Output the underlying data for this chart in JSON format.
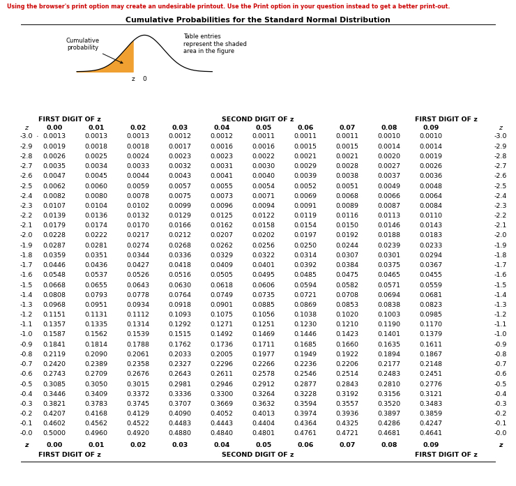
{
  "title": "Cumulative Probabilities for the Standard Normal Distribution",
  "warning": "Using the browser's print option may create an undesirable printout. Use the Print option in your question instead to get a better print-out.",
  "col_headers": [
    "0.00",
    "0.01",
    "0.02",
    "0.03",
    "0.04",
    "0.05",
    "0.06",
    "0.07",
    "0.08",
    "0.09"
  ],
  "z_values": [
    "-3.0",
    "-2.9",
    "-2.8",
    "-2.7",
    "-2.6",
    "-2.5",
    "-2.4",
    "-2.3",
    "-2.2",
    "-2.1",
    "-2.0",
    "-1.9",
    "-1.8",
    "-1.7",
    "-1.6",
    "-1.5",
    "-1.4",
    "-1.3",
    "-1.2",
    "-1.1",
    "-1.0",
    "-0.9",
    "-0.8",
    "-0.7",
    "-0.6",
    "-0.5",
    "-0.4",
    "-0.3",
    "-0.2",
    "-0.1",
    "-0.0"
  ],
  "table_data": [
    [
      "0.0013",
      "0.0013",
      "0.0013",
      "0.0012",
      "0.0012",
      "0.0011",
      "0.0011",
      "0.0011",
      "0.0010",
      "0.0010"
    ],
    [
      "0.0019",
      "0.0018",
      "0.0018",
      "0.0017",
      "0.0016",
      "0.0016",
      "0.0015",
      "0.0015",
      "0.0014",
      "0.0014"
    ],
    [
      "0.0026",
      "0.0025",
      "0.0024",
      "0.0023",
      "0.0023",
      "0.0022",
      "0.0021",
      "0.0021",
      "0.0020",
      "0.0019"
    ],
    [
      "0.0035",
      "0.0034",
      "0.0033",
      "0.0032",
      "0.0031",
      "0.0030",
      "0.0029",
      "0.0028",
      "0.0027",
      "0.0026"
    ],
    [
      "0.0047",
      "0.0045",
      "0.0044",
      "0.0043",
      "0.0041",
      "0.0040",
      "0.0039",
      "0.0038",
      "0.0037",
      "0.0036"
    ],
    [
      "0.0062",
      "0.0060",
      "0.0059",
      "0.0057",
      "0.0055",
      "0.0054",
      "0.0052",
      "0.0051",
      "0.0049",
      "0.0048"
    ],
    [
      "0.0082",
      "0.0080",
      "0.0078",
      "0.0075",
      "0.0073",
      "0.0071",
      "0.0069",
      "0.0068",
      "0.0066",
      "0.0064"
    ],
    [
      "0.0107",
      "0.0104",
      "0.0102",
      "0.0099",
      "0.0096",
      "0.0094",
      "0.0091",
      "0.0089",
      "0.0087",
      "0.0084"
    ],
    [
      "0.0139",
      "0.0136",
      "0.0132",
      "0.0129",
      "0.0125",
      "0.0122",
      "0.0119",
      "0.0116",
      "0.0113",
      "0.0110"
    ],
    [
      "0.0179",
      "0.0174",
      "0.0170",
      "0.0166",
      "0.0162",
      "0.0158",
      "0.0154",
      "0.0150",
      "0.0146",
      "0.0143"
    ],
    [
      "0.0228",
      "0.0222",
      "0.0217",
      "0.0212",
      "0.0207",
      "0.0202",
      "0.0197",
      "0.0192",
      "0.0188",
      "0.0183"
    ],
    [
      "0.0287",
      "0.0281",
      "0.0274",
      "0.0268",
      "0.0262",
      "0.0256",
      "0.0250",
      "0.0244",
      "0.0239",
      "0.0233"
    ],
    [
      "0.0359",
      "0.0351",
      "0.0344",
      "0.0336",
      "0.0329",
      "0.0322",
      "0.0314",
      "0.0307",
      "0.0301",
      "0.0294"
    ],
    [
      "0.0446",
      "0.0436",
      "0.0427",
      "0.0418",
      "0.0409",
      "0.0401",
      "0.0392",
      "0.0384",
      "0.0375",
      "0.0367"
    ],
    [
      "0.0548",
      "0.0537",
      "0.0526",
      "0.0516",
      "0.0505",
      "0.0495",
      "0.0485",
      "0.0475",
      "0.0465",
      "0.0455"
    ],
    [
      "0.0668",
      "0.0655",
      "0.0643",
      "0.0630",
      "0.0618",
      "0.0606",
      "0.0594",
      "0.0582",
      "0.0571",
      "0.0559"
    ],
    [
      "0.0808",
      "0.0793",
      "0.0778",
      "0.0764",
      "0.0749",
      "0.0735",
      "0.0721",
      "0.0708",
      "0.0694",
      "0.0681"
    ],
    [
      "0.0968",
      "0.0951",
      "0.0934",
      "0.0918",
      "0.0901",
      "0.0885",
      "0.0869",
      "0.0853",
      "0.0838",
      "0.0823"
    ],
    [
      "0.1151",
      "0.1131",
      "0.1112",
      "0.1093",
      "0.1075",
      "0.1056",
      "0.1038",
      "0.1020",
      "0.1003",
      "0.0985"
    ],
    [
      "0.1357",
      "0.1335",
      "0.1314",
      "0.1292",
      "0.1271",
      "0.1251",
      "0.1230",
      "0.1210",
      "0.1190",
      "0.1170"
    ],
    [
      "0.1587",
      "0.1562",
      "0.1539",
      "0.1515",
      "0.1492",
      "0.1469",
      "0.1446",
      "0.1423",
      "0.1401",
      "0.1379"
    ],
    [
      "0.1841",
      "0.1814",
      "0.1788",
      "0.1762",
      "0.1736",
      "0.1711",
      "0.1685",
      "0.1660",
      "0.1635",
      "0.1611"
    ],
    [
      "0.2119",
      "0.2090",
      "0.2061",
      "0.2033",
      "0.2005",
      "0.1977",
      "0.1949",
      "0.1922",
      "0.1894",
      "0.1867"
    ],
    [
      "0.2420",
      "0.2389",
      "0.2358",
      "0.2327",
      "0.2296",
      "0.2266",
      "0.2236",
      "0.2206",
      "0.2177",
      "0.2148"
    ],
    [
      "0.2743",
      "0.2709",
      "0.2676",
      "0.2643",
      "0.2611",
      "0.2578",
      "0.2546",
      "0.2514",
      "0.2483",
      "0.2451"
    ],
    [
      "0.3085",
      "0.3050",
      "0.3015",
      "0.2981",
      "0.2946",
      "0.2912",
      "0.2877",
      "0.2843",
      "0.2810",
      "0.2776"
    ],
    [
      "0.3446",
      "0.3409",
      "0.3372",
      "0.3336",
      "0.3300",
      "0.3264",
      "0.3228",
      "0.3192",
      "0.3156",
      "0.3121"
    ],
    [
      "0.3821",
      "0.3783",
      "0.3745",
      "0.3707",
      "0.3669",
      "0.3632",
      "0.3594",
      "0.3557",
      "0.3520",
      "0.3483"
    ],
    [
      "0.4207",
      "0.4168",
      "0.4129",
      "0.4090",
      "0.4052",
      "0.4013",
      "0.3974",
      "0.3936",
      "0.3897",
      "0.3859"
    ],
    [
      "0.4602",
      "0.4562",
      "0.4522",
      "0.4483",
      "0.4443",
      "0.4404",
      "0.4364",
      "0.4325",
      "0.4286",
      "0.4247"
    ],
    [
      "0.5000",
      "0.4960",
      "0.4920",
      "0.4880",
      "0.4840",
      "0.4801",
      "0.4761",
      "0.4721",
      "0.4681",
      "0.4641"
    ]
  ],
  "bg_color": "#ffffff",
  "warning_color": "#cc0000",
  "curve_color": "#000000",
  "fill_color": "#f0a030"
}
